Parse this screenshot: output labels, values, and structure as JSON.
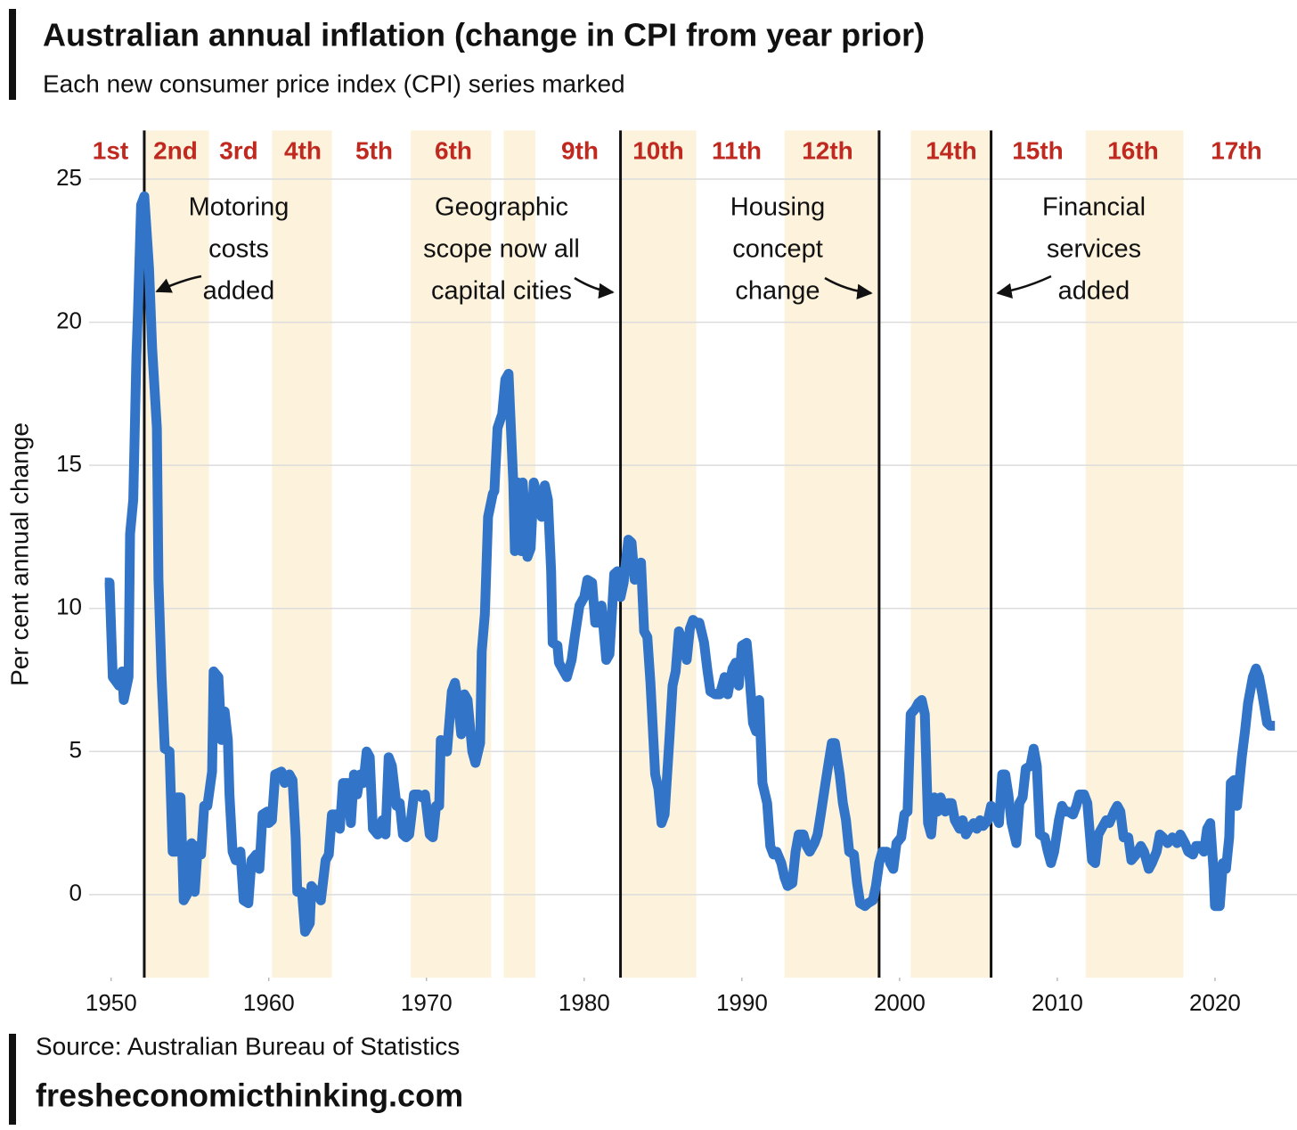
{
  "chart_data": {
    "type": "line",
    "title": "Australian annual inflation (change in CPI from year prior)",
    "subtitle": "Each new consumer price index (CPI) series marked",
    "y_label": "Per cent annual change",
    "source": "Source: Australian Bureau of Statistics",
    "website": "fresheconomicthinking.com",
    "color": "#3275c8",
    "band_color": "#fdf2dc",
    "grid": true,
    "xlim": [
      1948.6,
      2025.2
    ],
    "ylim": [
      -2.9,
      26.7
    ],
    "xticks": [
      1950,
      1960,
      1970,
      1980,
      1990,
      2000,
      2010,
      2020
    ],
    "yticks": [
      0,
      5,
      10,
      15,
      20,
      25
    ],
    "series_labels": [
      "1st",
      "2nd",
      "3rd",
      "4th",
      "5th",
      "6th",
      "9th",
      "10th",
      "11th",
      "12th",
      "14th",
      "15th",
      "16th",
      "17th"
    ],
    "annotations": [
      {
        "lines": [
          "Motoring",
          "costs",
          "added"
        ]
      },
      {
        "lines": [
          "Geographic",
          "scope now all",
          "capital cities"
        ]
      },
      {
        "lines": [
          "Housing",
          "concept",
          "change"
        ]
      },
      {
        "lines": [
          "Financial",
          "services",
          "added"
        ]
      }
    ],
    "bands": [
      [
        1952.1,
        1956.2
      ],
      [
        1960.2,
        1964.0
      ],
      [
        1969.0,
        1974.1
      ],
      [
        1974.9,
        1976.9
      ],
      [
        1982.4,
        1987.1
      ],
      [
        1992.7,
        1998.7
      ],
      [
        2000.7,
        2005.8
      ],
      [
        2011.8,
        2018.0
      ]
    ],
    "series_breaks": [
      1952.1,
      1982.3,
      1998.7,
      2005.8
    ],
    "x": [
      1949.6,
      1949.9,
      1950.1,
      1950.5,
      1950.7,
      1950.8,
      1951.1,
      1951.2,
      1951.4,
      1951.6,
      1951.7,
      1951.9,
      1952.1,
      1952.4,
      1952.6,
      1952.9,
      1953.0,
      1953.2,
      1953.4,
      1953.7,
      1953.9,
      1954.1,
      1954.2,
      1954.4,
      1954.6,
      1954.8,
      1955.1,
      1955.3,
      1955.5,
      1955.7,
      1955.9,
      1956.1,
      1956.4,
      1956.5,
      1956.8,
      1957.0,
      1957.2,
      1957.4,
      1957.5,
      1957.7,
      1957.9,
      1958.2,
      1958.4,
      1958.7,
      1958.9,
      1959.2,
      1959.4,
      1959.6,
      1959.9,
      1960.0,
      1960.2,
      1960.4,
      1960.8,
      1961.0,
      1961.3,
      1961.5,
      1961.7,
      1961.8,
      1962.1,
      1962.3,
      1962.6,
      1962.7,
      1963.0,
      1963.3,
      1963.6,
      1963.8,
      1964.0,
      1964.3,
      1964.5,
      1964.7,
      1965.0,
      1965.2,
      1965.4,
      1965.6,
      1965.8,
      1966.0,
      1966.2,
      1966.4,
      1966.6,
      1966.9,
      1967.2,
      1967.4,
      1967.6,
      1967.8,
      1968.1,
      1968.3,
      1968.5,
      1968.7,
      1968.9,
      1969.2,
      1969.5,
      1969.7,
      1969.9,
      1970.2,
      1970.4,
      1970.6,
      1970.8,
      1970.9,
      1971.2,
      1971.3,
      1971.6,
      1971.8,
      1972.0,
      1972.2,
      1972.4,
      1972.6,
      1972.9,
      1973.1,
      1973.4,
      1973.5,
      1973.7,
      1973.9,
      1974.2,
      1974.3,
      1974.5,
      1974.8,
      1975.0,
      1975.2,
      1975.5,
      1975.6,
      1975.8,
      1976.0,
      1976.1,
      1976.4,
      1976.6,
      1976.8,
      1977.1,
      1977.3,
      1977.5,
      1977.7,
      1977.9,
      1978.0,
      1978.3,
      1978.4,
      1978.7,
      1978.9,
      1979.2,
      1979.4,
      1979.7,
      1980.0,
      1980.2,
      1980.5,
      1980.7,
      1980.9,
      1981.1,
      1981.4,
      1981.6,
      1981.9,
      1982.1,
      1982.3,
      1982.5,
      1982.8,
      1983.0,
      1983.2,
      1983.4,
      1983.6,
      1983.8,
      1984.0,
      1984.2,
      1984.5,
      1984.7,
      1984.9,
      1985.1,
      1985.4,
      1985.6,
      1985.8,
      1986.0,
      1986.3,
      1986.5,
      1986.7,
      1986.9,
      1987.1,
      1987.3,
      1987.6,
      1987.8,
      1988.0,
      1988.3,
      1988.6,
      1988.9,
      1989.1,
      1989.4,
      1989.6,
      1989.8,
      1990.0,
      1990.3,
      1990.4,
      1990.7,
      1990.9,
      1991.1,
      1991.3,
      1991.6,
      1991.8,
      1992.0,
      1992.2,
      1992.5,
      1992.7,
      1992.9,
      1993.2,
      1993.4,
      1993.6,
      1993.9,
      1994.1,
      1994.3,
      1994.6,
      1994.8,
      1995.0,
      1995.3,
      1995.5,
      1995.7,
      1995.9,
      1996.2,
      1996.4,
      1996.6,
      1996.8,
      1997.1,
      1997.3,
      1997.5,
      1997.8,
      1998.0,
      1998.3,
      1998.5,
      1998.7,
      1998.9,
      1999.2,
      1999.4,
      1999.6,
      1999.8,
      2000.1,
      2000.3,
      2000.5,
      2000.7,
      2001.0,
      2001.2,
      2001.4,
      2001.6,
      2001.8,
      2002.0,
      2002.2,
      2002.4,
      2002.6,
      2002.9,
      2003.1,
      2003.3,
      2003.5,
      2003.8,
      2004.0,
      2004.2,
      2004.4,
      2004.7,
      2004.9,
      2005.1,
      2005.3,
      2005.6,
      2005.8,
      2006.0,
      2006.3,
      2006.5,
      2006.7,
      2006.9,
      2007.1,
      2007.4,
      2007.6,
      2007.8,
      2008.0,
      2008.3,
      2008.5,
      2008.7,
      2008.9,
      2009.2,
      2009.4,
      2009.6,
      2009.8,
      2010.1,
      2010.3,
      2010.5,
      2010.7,
      2011.0,
      2011.2,
      2011.4,
      2011.7,
      2011.9,
      2012.2,
      2012.4,
      2012.6,
      2012.8,
      2013.1,
      2013.3,
      2013.6,
      2013.8,
      2014.0,
      2014.2,
      2014.5,
      2014.7,
      2015.0,
      2015.3,
      2015.5,
      2015.8,
      2016.0,
      2016.3,
      2016.5,
      2016.7,
      2017.0,
      2017.3,
      2017.6,
      2017.8,
      2018.1,
      2018.3,
      2018.6,
      2018.8,
      2019.0,
      2019.3,
      2019.5,
      2019.7,
      2019.9,
      2020.0,
      2020.3,
      2020.5,
      2020.7,
      2020.9,
      2021.0,
      2021.2,
      2021.4,
      2021.7,
      2021.9,
      2022.1,
      2022.4,
      2022.6,
      2022.8,
      2023.0,
      2023.3,
      2023.5,
      2023.8
    ],
    "values": [
      10.9,
      10.9,
      7.6,
      7.3,
      7.8,
      6.8,
      7.6,
      12.6,
      13.8,
      18.8,
      20.4,
      24.1,
      24.4,
      21.9,
      19.1,
      16.3,
      11.0,
      7.6,
      5.1,
      5.0,
      1.5,
      1.5,
      3.4,
      3.4,
      -0.2,
      0.0,
      1.8,
      0.1,
      1.7,
      1.4,
      3.1,
      3.1,
      4.3,
      7.8,
      7.6,
      5.4,
      6.4,
      5.4,
      3.5,
      1.5,
      1.2,
      1.5,
      -0.2,
      -0.3,
      1.2,
      1.4,
      0.9,
      2.8,
      2.9,
      2.5,
      2.6,
      4.2,
      4.3,
      3.9,
      4.2,
      4.0,
      2.0,
      0.1,
      0.1,
      -1.3,
      -1.0,
      0.3,
      0.1,
      -0.2,
      1.2,
      1.4,
      2.8,
      2.8,
      2.3,
      3.9,
      3.9,
      2.5,
      4.2,
      3.5,
      4.2,
      3.9,
      5.0,
      4.8,
      2.3,
      2.1,
      2.6,
      2.1,
      4.8,
      4.5,
      3.1,
      3.2,
      2.1,
      2.0,
      2.1,
      3.5,
      3.5,
      3.4,
      3.5,
      2.1,
      2.0,
      3.1,
      3.1,
      5.4,
      5.1,
      5.0,
      7.1,
      7.4,
      6.7,
      5.6,
      7.0,
      6.8,
      5.0,
      4.6,
      5.3,
      8.5,
      9.8,
      13.2,
      14.0,
      14.1,
      16.3,
      16.8,
      18.0,
      18.2,
      14.4,
      12.0,
      14.4,
      12.0,
      14.4,
      11.8,
      12.1,
      14.4,
      13.8,
      13.2,
      14.3,
      13.8,
      11.3,
      8.8,
      8.7,
      8.1,
      7.8,
      7.6,
      8.2,
      9.0,
      10.1,
      10.4,
      11.0,
      10.9,
      9.5,
      9.5,
      10.1,
      8.2,
      8.4,
      11.2,
      11.3,
      10.4,
      10.9,
      12.4,
      12.3,
      11.0,
      11.3,
      11.6,
      9.2,
      9.0,
      7.4,
      4.2,
      3.7,
      2.5,
      2.8,
      5.4,
      7.3,
      7.8,
      9.2,
      8.8,
      8.2,
      9.3,
      9.6,
      9.5,
      9.5,
      8.8,
      7.9,
      7.1,
      7.0,
      7.0,
      7.6,
      7.0,
      7.9,
      8.1,
      7.3,
      8.7,
      8.8,
      8.2,
      6.0,
      5.7,
      6.8,
      3.9,
      3.2,
      1.7,
      1.4,
      1.5,
      1.1,
      0.6,
      0.3,
      0.4,
      1.5,
      2.1,
      2.1,
      1.7,
      1.5,
      1.8,
      2.1,
      2.8,
      3.9,
      4.6,
      5.3,
      5.3,
      4.2,
      3.2,
      2.6,
      1.5,
      1.4,
      0.4,
      -0.3,
      -0.4,
      -0.3,
      -0.2,
      0.3,
      1.1,
      1.5,
      1.5,
      1.1,
      0.9,
      1.8,
      2.0,
      2.8,
      2.9,
      6.3,
      6.5,
      6.7,
      6.8,
      6.3,
      2.5,
      2.1,
      3.4,
      2.9,
      3.4,
      2.9,
      3.2,
      3.2,
      2.6,
      2.3,
      2.6,
      2.1,
      2.3,
      2.5,
      2.3,
      2.6,
      2.4,
      2.6,
      3.1,
      2.9,
      2.5,
      4.2,
      4.2,
      3.5,
      2.5,
      1.8,
      3.2,
      3.4,
      4.4,
      4.5,
      5.1,
      4.5,
      2.1,
      2.0,
      1.5,
      1.1,
      1.5,
      2.6,
      3.1,
      2.9,
      2.9,
      2.8,
      3.1,
      3.5,
      3.5,
      3.2,
      1.2,
      1.1,
      2.1,
      2.3,
      2.6,
      2.5,
      2.9,
      3.1,
      2.9,
      2.0,
      2.0,
      1.2,
      1.4,
      1.7,
      1.5,
      0.9,
      1.1,
      1.5,
      2.1,
      2.0,
      1.8,
      2.0,
      1.8,
      2.1,
      1.8,
      1.5,
      1.4,
      1.7,
      1.7,
      1.5,
      2.3,
      2.5,
      0.9,
      -0.4,
      -0.4,
      1.1,
      0.9,
      2.0,
      3.9,
      4.0,
      3.1,
      4.8,
      5.7,
      6.7,
      7.6,
      7.9,
      7.6,
      7.0,
      6.0,
      5.9,
      5.9
    ]
  }
}
